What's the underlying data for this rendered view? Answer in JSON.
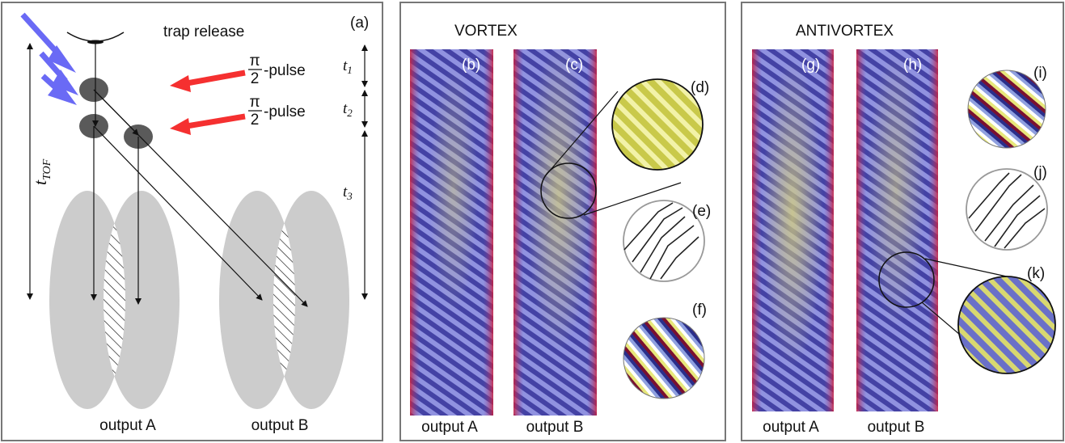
{
  "panel_a": {
    "label": "(a)",
    "trap_release": "trap release",
    "pulse_pi": "π",
    "pulse_two": "2",
    "pulse_suffix": "-pulse",
    "t": "t",
    "t1_sub": "1",
    "t2_sub": "2",
    "t3_sub": "3",
    "ttof_sub": "TOF",
    "output_a": "output A",
    "output_b": "output B"
  },
  "vortex": {
    "title": "VORTEX",
    "labels": [
      "(b)",
      "(c)",
      "(d)",
      "(e)",
      "(f)"
    ],
    "output_a": "output A",
    "output_b": "output B"
  },
  "antivortex": {
    "title": "ANTIVORTEX",
    "labels": [
      "(g)",
      "(h)",
      "(i)",
      "(j)",
      "(k)"
    ],
    "output_a": "output A",
    "output_b": "output B"
  },
  "colors": {
    "pump_arrow": "#6a6af5",
    "probe_arrow": "#f53030",
    "cloud": "#cccccc",
    "atom": "#5a5a5a",
    "panel_border": "#777777",
    "fringe_blue": "#5560c8",
    "fringe_yellow": "#e4e44a",
    "edge_red": "#d0203a"
  }
}
